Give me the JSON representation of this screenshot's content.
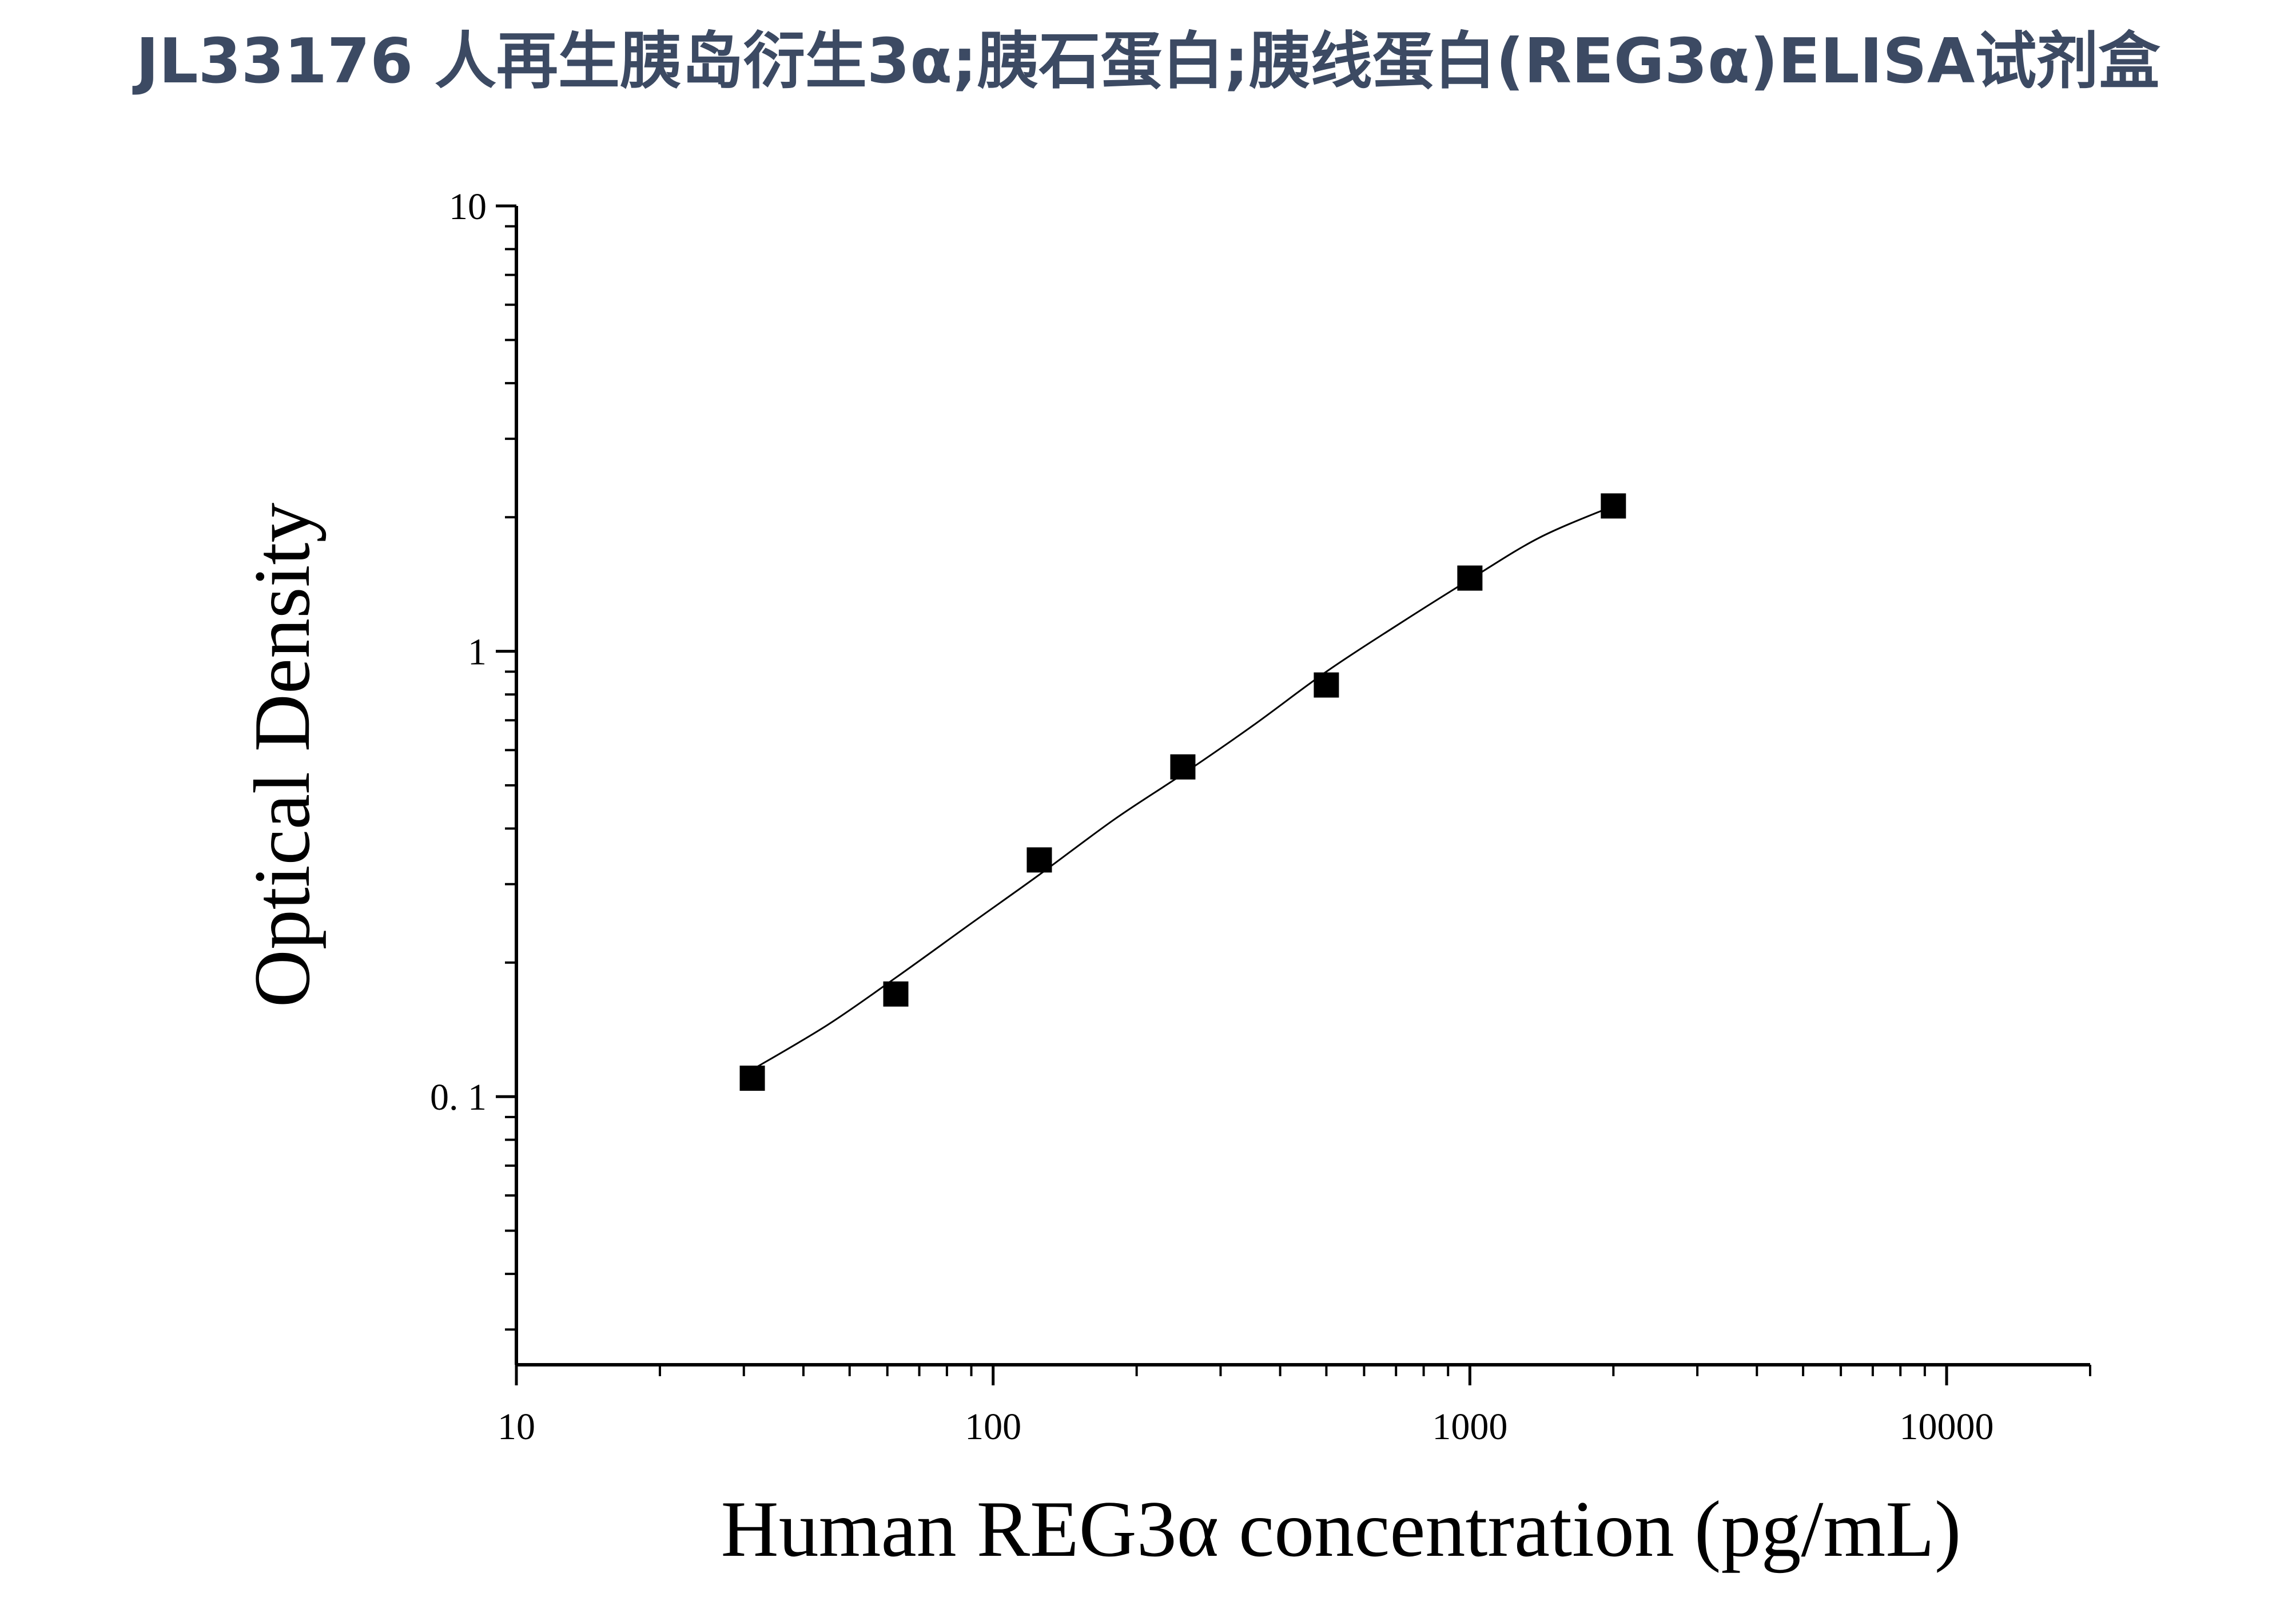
{
  "title": "JL33176 人再生胰岛衍生3α;胰石蛋白;胰线蛋白(REG3α)ELISA试剂盒",
  "chart_data": {
    "type": "scatter",
    "title": "JL33176 人再生胰岛衍生3α;胰石蛋白;胰线蛋白(REG3α)ELISA试剂盒",
    "xlabel": "Human REG3α concentration (pg/mL)",
    "ylabel": "Optical Density",
    "xscale": "log",
    "yscale": "log",
    "xlim": [
      10,
      20000
    ],
    "ylim": [
      0.025,
      10
    ],
    "x_ticks": [
      {
        "value": 10,
        "label": "10"
      },
      {
        "value": 100,
        "label": "100"
      },
      {
        "value": 1000,
        "label": "1000"
      },
      {
        "value": 10000,
        "label": "10000"
      }
    ],
    "y_ticks": [
      {
        "value": 0.1,
        "label": "0. 1"
      },
      {
        "value": 1,
        "label": "1"
      },
      {
        "value": 10,
        "label": "10"
      }
    ],
    "grid": false,
    "legend": "none",
    "marker_color": "#000000",
    "line_color": "#000000",
    "series": [
      {
        "marker": "square",
        "x": [
          31.25,
          62.5,
          125,
          250,
          500,
          1000,
          2000
        ],
        "y": [
          0.11,
          0.17,
          0.34,
          0.55,
          0.84,
          1.46,
          2.12
        ]
      }
    ],
    "fit_curve": {
      "x": [
        31.25,
        45,
        62.5,
        90,
        125,
        180,
        250,
        350,
        500,
        700,
        1000,
        1400,
        2000
      ],
      "y": [
        0.115,
        0.145,
        0.185,
        0.245,
        0.315,
        0.42,
        0.53,
        0.68,
        0.9,
        1.14,
        1.45,
        1.8,
        2.12
      ]
    }
  }
}
